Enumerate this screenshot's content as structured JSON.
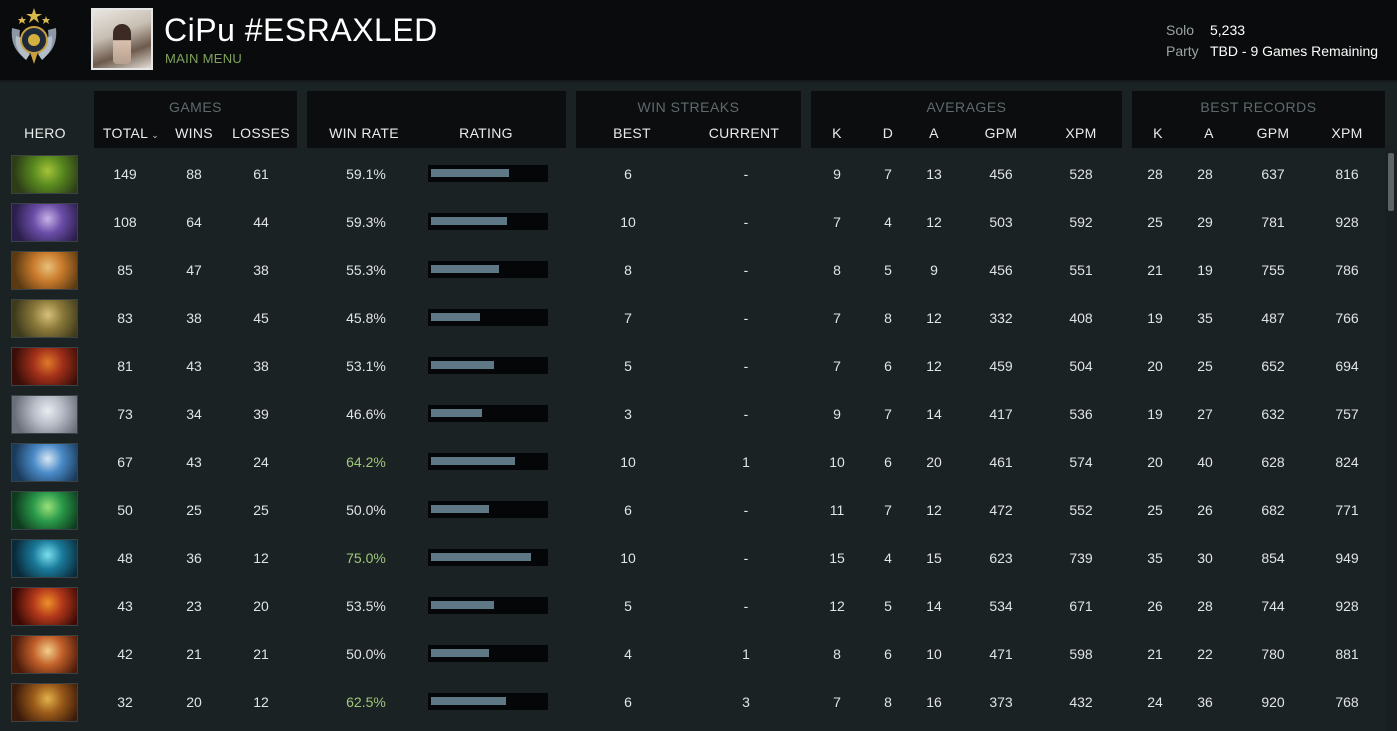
{
  "header": {
    "player_name": "CiPu #ESRAXLED",
    "main_menu_label": "MAIN MENU",
    "mmr": {
      "solo_label": "Solo",
      "solo_value": "5,233",
      "party_label": "Party",
      "party_value": "TBD - 9 Games Remaining"
    },
    "rank_icon": "rank-medal-icon"
  },
  "columns": {
    "hero": "HERO",
    "games_group": "GAMES",
    "total": "TOTAL",
    "wins": "WINS",
    "losses": "LOSSES",
    "win_rate": "WIN RATE",
    "rating": "RATING",
    "streaks_group": "WIN STREAKS",
    "best": "BEST",
    "current": "CURRENT",
    "averages_group": "AVERAGES",
    "avg_k": "K",
    "avg_d": "D",
    "avg_a": "A",
    "avg_gpm": "GPM",
    "avg_xpm": "XPM",
    "records_group": "BEST RECORDS",
    "rec_k": "K",
    "rec_a": "A",
    "rec_gpm": "GPM",
    "rec_xpm": "XPM"
  },
  "colors": {
    "win_rate_high": "#9fc77a",
    "rating_bar": "#5e7886"
  },
  "rows": [
    {
      "portrait": [
        "#2c3d18",
        "#5a8a1f",
        "#a4c43a"
      ],
      "total": "149",
      "wins": "88",
      "losses": "61",
      "win_rate": "59.1%",
      "rating": 0.68,
      "best": "6",
      "current": "-",
      "k": "9",
      "d": "7",
      "a": "13",
      "gpm": "456",
      "xpm": "528",
      "rk": "28",
      "ra": "28",
      "rgpm": "637",
      "rxpm": "816"
    },
    {
      "portrait": [
        "#2a1e4a",
        "#6b4da8",
        "#c7b3e6"
      ],
      "total": "108",
      "wins": "64",
      "losses": "44",
      "win_rate": "59.3%",
      "rating": 0.67,
      "best": "10",
      "current": "-",
      "k": "7",
      "d": "4",
      "a": "12",
      "gpm": "503",
      "xpm": "592",
      "rk": "25",
      "ra": "29",
      "rgpm": "781",
      "rxpm": "928"
    },
    {
      "portrait": [
        "#5a3a12",
        "#c97a2c",
        "#e8c07a"
      ],
      "total": "85",
      "wins": "47",
      "losses": "38",
      "win_rate": "55.3%",
      "rating": 0.6,
      "best": "8",
      "current": "-",
      "k": "8",
      "d": "5",
      "a": "9",
      "gpm": "456",
      "xpm": "551",
      "rk": "21",
      "ra": "19",
      "rgpm": "755",
      "rxpm": "786"
    },
    {
      "portrait": [
        "#3e3a1c",
        "#8c7a3a",
        "#d6c07c"
      ],
      "total": "83",
      "wins": "38",
      "losses": "45",
      "win_rate": "45.8%",
      "rating": 0.43,
      "best": "7",
      "current": "-",
      "k": "7",
      "d": "8",
      "a": "12",
      "gpm": "332",
      "xpm": "408",
      "rk": "19",
      "ra": "35",
      "rgpm": "487",
      "rxpm": "766"
    },
    {
      "portrait": [
        "#3a0e08",
        "#a2301a",
        "#e07a2a"
      ],
      "total": "81",
      "wins": "43",
      "losses": "38",
      "win_rate": "53.1%",
      "rating": 0.55,
      "best": "5",
      "current": "-",
      "k": "7",
      "d": "6",
      "a": "12",
      "gpm": "459",
      "xpm": "504",
      "rk": "20",
      "ra": "25",
      "rgpm": "652",
      "rxpm": "694"
    },
    {
      "portrait": [
        "#6a6e78",
        "#b8bcc6",
        "#e8ecf2"
      ],
      "total": "73",
      "wins": "34",
      "losses": "39",
      "win_rate": "46.6%",
      "rating": 0.45,
      "best": "3",
      "current": "-",
      "k": "9",
      "d": "7",
      "a": "14",
      "gpm": "417",
      "xpm": "536",
      "rk": "19",
      "ra": "27",
      "rgpm": "632",
      "rxpm": "757"
    },
    {
      "portrait": [
        "#1a3a5a",
        "#4a8ac8",
        "#d8e8f4"
      ],
      "total": "67",
      "wins": "43",
      "losses": "24",
      "win_rate": "64.2%",
      "rating": 0.74,
      "best": "10",
      "current": "1",
      "k": "10",
      "d": "6",
      "a": "20",
      "gpm": "461",
      "xpm": "574",
      "rk": "20",
      "ra": "40",
      "rgpm": "628",
      "rxpm": "824"
    },
    {
      "portrait": [
        "#0e3a1e",
        "#2a9a4a",
        "#9ae07a"
      ],
      "total": "50",
      "wins": "25",
      "losses": "25",
      "win_rate": "50.0%",
      "rating": 0.51,
      "best": "6",
      "current": "-",
      "k": "11",
      "d": "7",
      "a": "12",
      "gpm": "472",
      "xpm": "552",
      "rk": "25",
      "ra": "26",
      "rgpm": "682",
      "rxpm": "771"
    },
    {
      "portrait": [
        "#0a2a3a",
        "#1a7a9a",
        "#7ae0f0"
      ],
      "total": "48",
      "wins": "36",
      "losses": "12",
      "win_rate": "75.0%",
      "rating": 0.88,
      "best": "10",
      "current": "-",
      "k": "15",
      "d": "4",
      "a": "15",
      "gpm": "623",
      "xpm": "739",
      "rk": "35",
      "ra": "30",
      "rgpm": "854",
      "rxpm": "949"
    },
    {
      "portrait": [
        "#3a0a06",
        "#b2381a",
        "#f0902a"
      ],
      "total": "43",
      "wins": "23",
      "losses": "20",
      "win_rate": "53.5%",
      "rating": 0.55,
      "best": "5",
      "current": "-",
      "k": "12",
      "d": "5",
      "a": "14",
      "gpm": "534",
      "xpm": "671",
      "rk": "26",
      "ra": "28",
      "rgpm": "744",
      "rxpm": "928"
    },
    {
      "portrait": [
        "#4a1a0a",
        "#c2602a",
        "#f2d08a"
      ],
      "total": "42",
      "wins": "21",
      "losses": "21",
      "win_rate": "50.0%",
      "rating": 0.51,
      "best": "4",
      "current": "1",
      "k": "8",
      "d": "6",
      "a": "10",
      "gpm": "471",
      "xpm": "598",
      "rk": "21",
      "ra": "22",
      "rgpm": "780",
      "rxpm": "881"
    },
    {
      "portrait": [
        "#3a1a0a",
        "#9a5a1a",
        "#e2b24a"
      ],
      "total": "32",
      "wins": "20",
      "losses": "12",
      "win_rate": "62.5%",
      "rating": 0.66,
      "best": "6",
      "current": "3",
      "k": "7",
      "d": "8",
      "a": "16",
      "gpm": "373",
      "xpm": "432",
      "rk": "24",
      "ra": "36",
      "rgpm": "920",
      "rxpm": "768"
    }
  ]
}
